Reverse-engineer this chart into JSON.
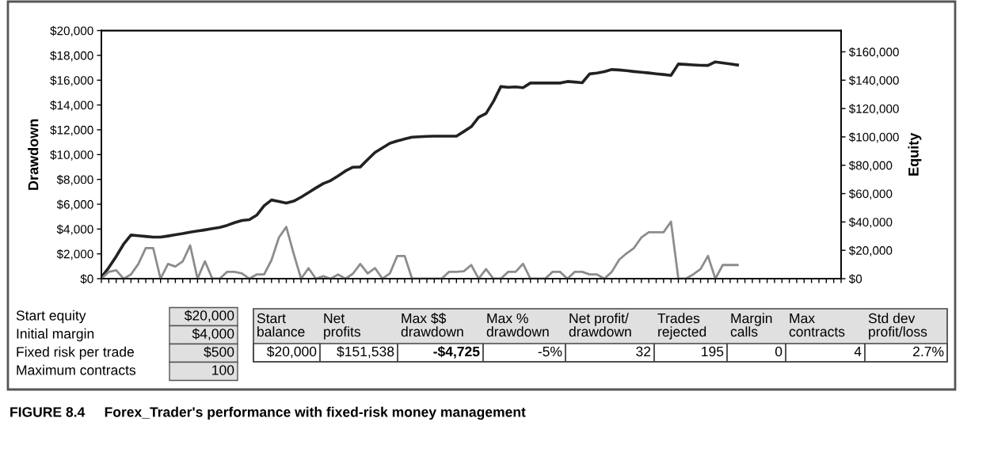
{
  "chart_data": {
    "type": "line",
    "ylabel": "Drawdown",
    "y2label": "Equity",
    "categories": [
      null,
      null,
      null,
      null,
      null,
      null,
      null,
      null,
      null,
      null,
      null,
      null,
      null,
      null,
      null,
      null,
      null,
      null,
      null,
      null,
      null,
      null,
      null,
      null,
      null,
      null,
      null,
      null,
      null,
      null,
      null,
      null,
      null,
      null,
      null,
      null,
      null,
      null,
      null,
      null,
      null,
      null,
      null,
      null,
      null,
      null,
      null,
      null,
      null,
      null,
      null,
      null,
      null,
      null,
      null,
      null,
      null,
      null,
      null,
      null,
      null,
      null,
      null,
      null,
      null,
      null,
      null,
      null,
      null,
      null,
      null,
      null,
      null,
      null,
      null,
      null,
      null,
      null,
      null,
      null,
      null,
      null,
      null,
      null,
      null,
      null,
      null,
      null,
      null,
      null,
      null,
      null,
      null,
      null,
      null,
      null,
      null,
      null,
      null,
      null,
      null
    ],
    "ylim": [
      0,
      20000
    ],
    "yticks": [
      {
        "value": 0,
        "label": "$0"
      },
      {
        "value": 2000,
        "label": "$2,000"
      },
      {
        "value": 4000,
        "label": "$4,000"
      },
      {
        "value": 6000,
        "label": "$6,000"
      },
      {
        "value": 8000,
        "label": "$8,000"
      },
      {
        "value": 10000,
        "label": "$10,000"
      },
      {
        "value": 12000,
        "label": "$12,000"
      },
      {
        "value": 14000,
        "label": "$14,000"
      },
      {
        "value": 16000,
        "label": "$16,000"
      },
      {
        "value": 18000,
        "label": "$18,000"
      },
      {
        "value": 20000,
        "label": "$20,000"
      }
    ],
    "y2lim": [
      0,
      175000
    ],
    "y2ticks": [
      {
        "value": 0,
        "label": "$0"
      },
      {
        "value": 20000,
        "label": "$20,000"
      },
      {
        "value": 40000,
        "label": "$40,000"
      },
      {
        "value": 60000,
        "label": "$60,000"
      },
      {
        "value": 80000,
        "label": "$80,000"
      },
      {
        "value": 100000,
        "label": "$100,000"
      },
      {
        "value": 120000,
        "label": "$120,000"
      },
      {
        "value": 140000,
        "label": "$140,000"
      },
      {
        "value": 160000,
        "label": "$160,000"
      }
    ],
    "series": [
      {
        "color": "#222222",
        "axis": "y2",
        "values": [
          1000,
          7800,
          15700,
          24300,
          30800,
          30300,
          29800,
          29300,
          29300,
          30100,
          31000,
          31800,
          32800,
          33600,
          34400,
          35300,
          36200,
          37600,
          39500,
          41000,
          41600,
          44800,
          51400,
          55500,
          54500,
          53300,
          54700,
          57500,
          60700,
          64000,
          67100,
          69200,
          72500,
          76000,
          78600,
          78800,
          84000,
          89100,
          92300,
          95500,
          97200,
          98500,
          99800,
          100100,
          100400,
          100500,
          100500,
          100500,
          100500,
          103800,
          107200,
          113800,
          116500,
          125000,
          135500,
          135000,
          135300,
          134700,
          138000,
          138000,
          138000,
          138000,
          138000,
          139100,
          138700,
          138200,
          144400,
          145000,
          146000,
          147500,
          147200,
          146700,
          146100,
          145600,
          145100,
          144500,
          144000,
          143400,
          151400,
          151100,
          150800,
          150500,
          150400,
          152900,
          152200,
          151500,
          150700,
          null,
          null,
          null,
          null,
          null,
          null,
          null,
          null,
          null,
          null,
          null,
          null,
          null,
          null
        ]
      },
      {
        "color": "#8c8c8c",
        "values": [
          0,
          550,
          680,
          0,
          340,
          1190,
          2470,
          2470,
          0,
          1190,
          980,
          1400,
          2680,
          0,
          1400,
          0,
          0,
          550,
          550,
          425,
          0,
          340,
          340,
          1500,
          3320,
          4170,
          2000,
          0,
          850,
          0,
          200,
          0,
          340,
          0,
          400,
          1190,
          425,
          850,
          0,
          425,
          1830,
          1830,
          0,
          0,
          0,
          0,
          0,
          550,
          550,
          600,
          1100,
          0,
          770,
          0,
          0,
          550,
          550,
          1200,
          0,
          0,
          0,
          550,
          550,
          0,
          550,
          550,
          340,
          340,
          0,
          550,
          1530,
          2040,
          2470,
          3320,
          3740,
          3740,
          3740,
          4600,
          0,
          0,
          340,
          770,
          1830,
          0,
          1100,
          1100,
          1100,
          null,
          null,
          null,
          null,
          null,
          null,
          null,
          null,
          null,
          null,
          null,
          null,
          null,
          null
        ]
      }
    ],
    "tick_labels": "y",
    "annotations": [
      "Start equity",
      "$20,000",
      "Initial margin",
      "$4,000",
      "Fixed risk per trade",
      "$500",
      "Maximum contracts",
      "100",
      "Start\nbalance",
      "$20,000",
      "Net\nprofits",
      "$151,538",
      "Max $$\ndrawdown",
      "-$4,725",
      "Max %\ndrawdown",
      "-5%",
      "Net profit/\ndrawdown",
      "32",
      "Trades\nrejected",
      "195",
      "Margin\ncalls",
      "0",
      "Max\ncontracts",
      "4",
      "Std dev\nprofit/loss",
      "2.7%",
      "FIGURE 8.4     Forex_Trader's performance with fixed-risk money management"
    ]
  }
}
